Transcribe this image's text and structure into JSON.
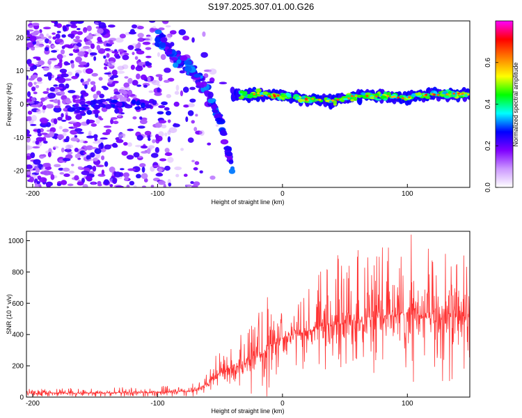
{
  "figure": {
    "title": "S197.2025.307.01.00.G26"
  },
  "chart_data": [
    {
      "type": "heatmap",
      "xlabel": "Height of straight line (km)",
      "ylabel": "Frequency (Hz)",
      "xlim": [
        -205,
        150
      ],
      "ylim": [
        -25,
        25
      ],
      "xticks": [
        -200,
        -100,
        0,
        100
      ],
      "yticks": [
        -20,
        -10,
        0,
        10,
        20
      ],
      "colorbar": {
        "label": "Normalized spectral amplitude",
        "range": [
          0,
          0.8
        ],
        "ticks": [
          "0.0",
          "0.2",
          "0.4",
          "0.6"
        ],
        "tick_values": [
          0,
          0.2,
          0.4,
          0.6
        ],
        "colors": [
          "#ffffff",
          "#cc99ff",
          "#8000ff",
          "#0000ff",
          "#00ffff",
          "#00ff00",
          "#ffff00",
          "#ff8000",
          "#ff0000",
          "#ff00ff"
        ]
      },
      "features": {
        "noise_region_km": [
          -205,
          -40
        ],
        "straight_line_track": {
          "x": [
            -40,
            -20,
            0,
            20,
            40,
            60,
            80,
            100,
            120,
            150
          ],
          "freq": [
            3,
            3,
            2.5,
            1.5,
            1,
            2.5,
            2.5,
            2,
            3,
            3
          ]
        },
        "descending_branch": {
          "x": [
            -100,
            -85,
            -70,
            -60,
            -50,
            -40
          ],
          "freq": [
            20,
            14,
            9,
            4,
            -5,
            -20
          ]
        },
        "weak_branch": {
          "x": [
            -170,
            -140,
            -110,
            -90
          ],
          "freq": [
            -1,
            0,
            0,
            -2
          ]
        }
      }
    },
    {
      "type": "line",
      "xlabel": "Height of straight line (km)",
      "ylabel": "SNR (10 * v/v)",
      "xlim": [
        -205,
        150
      ],
      "ylim": [
        0,
        1060
      ],
      "xticks": [
        -200,
        -100,
        0,
        100
      ],
      "yticks": [
        0,
        200,
        400,
        600,
        800,
        1000
      ],
      "color": "#ff3333",
      "envelope": {
        "x": [
          -205,
          -150,
          -100,
          -70,
          -60,
          -50,
          -40,
          -30,
          -20,
          -10,
          0,
          20,
          40,
          60,
          80,
          100,
          120,
          150
        ],
        "mean": [
          25,
          27,
          30,
          40,
          80,
          160,
          190,
          210,
          260,
          320,
          380,
          420,
          470,
          500,
          520,
          540,
          500,
          520
        ],
        "max": [
          55,
          60,
          70,
          90,
          150,
          330,
          400,
          420,
          540,
          780,
          560,
          700,
          900,
          1000,
          960,
          1060,
          950,
          1000
        ]
      }
    }
  ]
}
